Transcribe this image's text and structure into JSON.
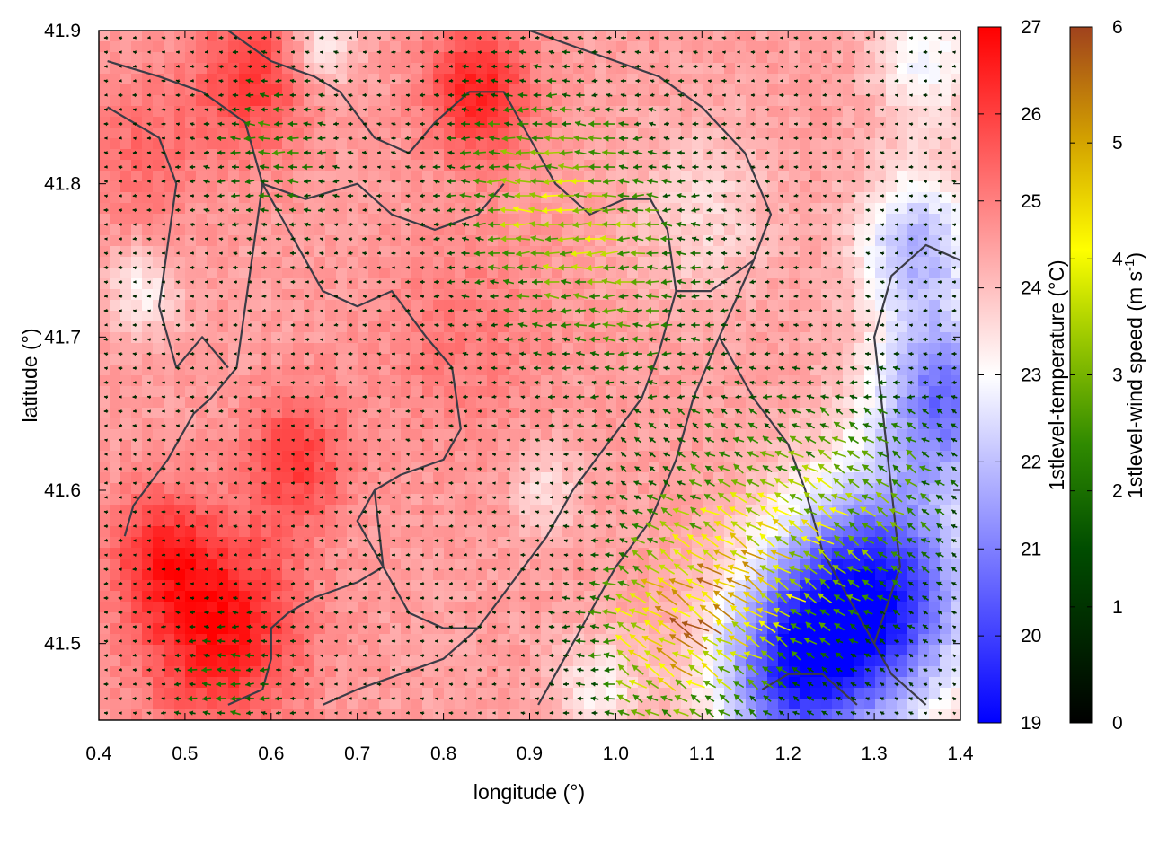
{
  "chart_data": {
    "type": "heatmap",
    "title": "",
    "xlabel": "longitude (°)",
    "ylabel": "latitude (°)",
    "xlim": [
      0.4,
      1.4
    ],
    "ylim": [
      41.45,
      41.9
    ],
    "xticks": [
      {
        "value": 0.4,
        "label": "0.4"
      },
      {
        "value": 0.5,
        "label": "0.5"
      },
      {
        "value": 0.6,
        "label": "0.6"
      },
      {
        "value": 0.7,
        "label": "0.7"
      },
      {
        "value": 0.8,
        "label": "0.8"
      },
      {
        "value": 0.9,
        "label": "0.9"
      },
      {
        "value": 1.0,
        "label": "1.0"
      },
      {
        "value": 1.1,
        "label": "1.1"
      },
      {
        "value": 1.2,
        "label": "1.2"
      },
      {
        "value": 1.3,
        "label": "1.3"
      },
      {
        "value": 1.4,
        "label": "1.4"
      }
    ],
    "yticks": [
      {
        "value": 41.5,
        "label": "41.5"
      },
      {
        "value": 41.6,
        "label": "41.6"
      },
      {
        "value": 41.7,
        "label": "41.7"
      },
      {
        "value": 41.8,
        "label": "41.8"
      },
      {
        "value": 41.9,
        "label": "41.9"
      }
    ],
    "colorbars": [
      {
        "label": "1stlevel-temperature (°C)",
        "range": [
          19,
          27
        ],
        "ticks": [
          {
            "value": 19,
            "label": "19"
          },
          {
            "value": 20,
            "label": "20"
          },
          {
            "value": 21,
            "label": "21"
          },
          {
            "value": 22,
            "label": "22"
          },
          {
            "value": 23,
            "label": "23"
          },
          {
            "value": 24,
            "label": "24"
          },
          {
            "value": 25,
            "label": "25"
          },
          {
            "value": 26,
            "label": "26"
          },
          {
            "value": 27,
            "label": "27"
          }
        ],
        "colors": [
          "#0000ff",
          "#ffffff",
          "#ff0000"
        ]
      },
      {
        "label_main": "1stlevel-wind speed (m s",
        "label_sup": "-1",
        "label_end": ")",
        "range": [
          0,
          6
        ],
        "ticks": [
          {
            "value": 0,
            "label": "0"
          },
          {
            "value": 1,
            "label": "1"
          },
          {
            "value": 2,
            "label": "2"
          },
          {
            "value": 3,
            "label": "3"
          },
          {
            "value": 4,
            "label": "4"
          },
          {
            "value": 5,
            "label": "5"
          },
          {
            "value": 6,
            "label": "6"
          }
        ],
        "colors": [
          "#000000",
          "#006400",
          "#66a800",
          "#ffff00",
          "#d2a000",
          "#a0522d"
        ]
      }
    ],
    "temperature_field": {
      "base": 24.5,
      "blobs": [
        {
          "lon": 0.54,
          "lat": 41.51,
          "dT": 2.3,
          "r": 0.09
        },
        {
          "lon": 0.47,
          "lat": 41.56,
          "dT": 1.4,
          "r": 0.06
        },
        {
          "lon": 0.63,
          "lat": 41.62,
          "dT": 1.5,
          "r": 0.06
        },
        {
          "lon": 0.58,
          "lat": 41.87,
          "dT": 1.6,
          "r": 0.07
        },
        {
          "lon": 0.84,
          "lat": 41.86,
          "dT": 2.0,
          "r": 0.06
        },
        {
          "lon": 0.45,
          "lat": 41.82,
          "dT": 0.8,
          "r": 0.07
        },
        {
          "lon": 0.82,
          "lat": 41.7,
          "dT": 0.6,
          "r": 0.1
        },
        {
          "lon": 1.3,
          "lat": 41.53,
          "dT": -5.2,
          "r": 0.11
        },
        {
          "lon": 1.2,
          "lat": 41.48,
          "dT": -3.8,
          "r": 0.09
        },
        {
          "lon": 1.38,
          "lat": 41.66,
          "dT": -3.6,
          "r": 0.08
        },
        {
          "lon": 1.35,
          "lat": 41.76,
          "dT": -2.6,
          "r": 0.07
        },
        {
          "lon": 1.36,
          "lat": 41.88,
          "dT": -1.6,
          "r": 0.06
        },
        {
          "lon": 0.66,
          "lat": 41.89,
          "dT": -1.4,
          "r": 0.04
        },
        {
          "lon": 0.45,
          "lat": 41.73,
          "dT": -1.3,
          "r": 0.04
        },
        {
          "lon": 1.1,
          "lat": 41.78,
          "dT": -0.9,
          "r": 0.08
        },
        {
          "lon": 0.92,
          "lat": 41.6,
          "dT": -1.0,
          "r": 0.04
        },
        {
          "lon": 0.98,
          "lat": 41.47,
          "dT": -1.3,
          "r": 0.05
        }
      ]
    },
    "wind_field": {
      "direction": "from east (arrows point west)",
      "zones": [
        {
          "lon": 1.15,
          "lat": 41.55,
          "speed": 3.2,
          "r": 0.12
        },
        {
          "lon": 1.05,
          "lat": 41.5,
          "speed": 2.8,
          "r": 0.08
        },
        {
          "lon": 0.9,
          "lat": 41.8,
          "speed": 2.0,
          "r": 0.1
        },
        {
          "lon": 1.0,
          "lat": 41.75,
          "speed": 1.8,
          "r": 0.12
        },
        {
          "lon": 0.6,
          "lat": 41.82,
          "speed": 1.6,
          "r": 0.07
        },
        {
          "lon": 0.55,
          "lat": 41.47,
          "speed": 1.5,
          "r": 0.06
        },
        {
          "lon": 1.3,
          "lat": 41.6,
          "speed": 1.9,
          "r": 0.1
        }
      ]
    },
    "annotations": {
      "boundaries": "administrative region outlines (dark gray lines)"
    }
  },
  "colors": {
    "boundary": "#3c3c46",
    "frame": "#000000"
  }
}
